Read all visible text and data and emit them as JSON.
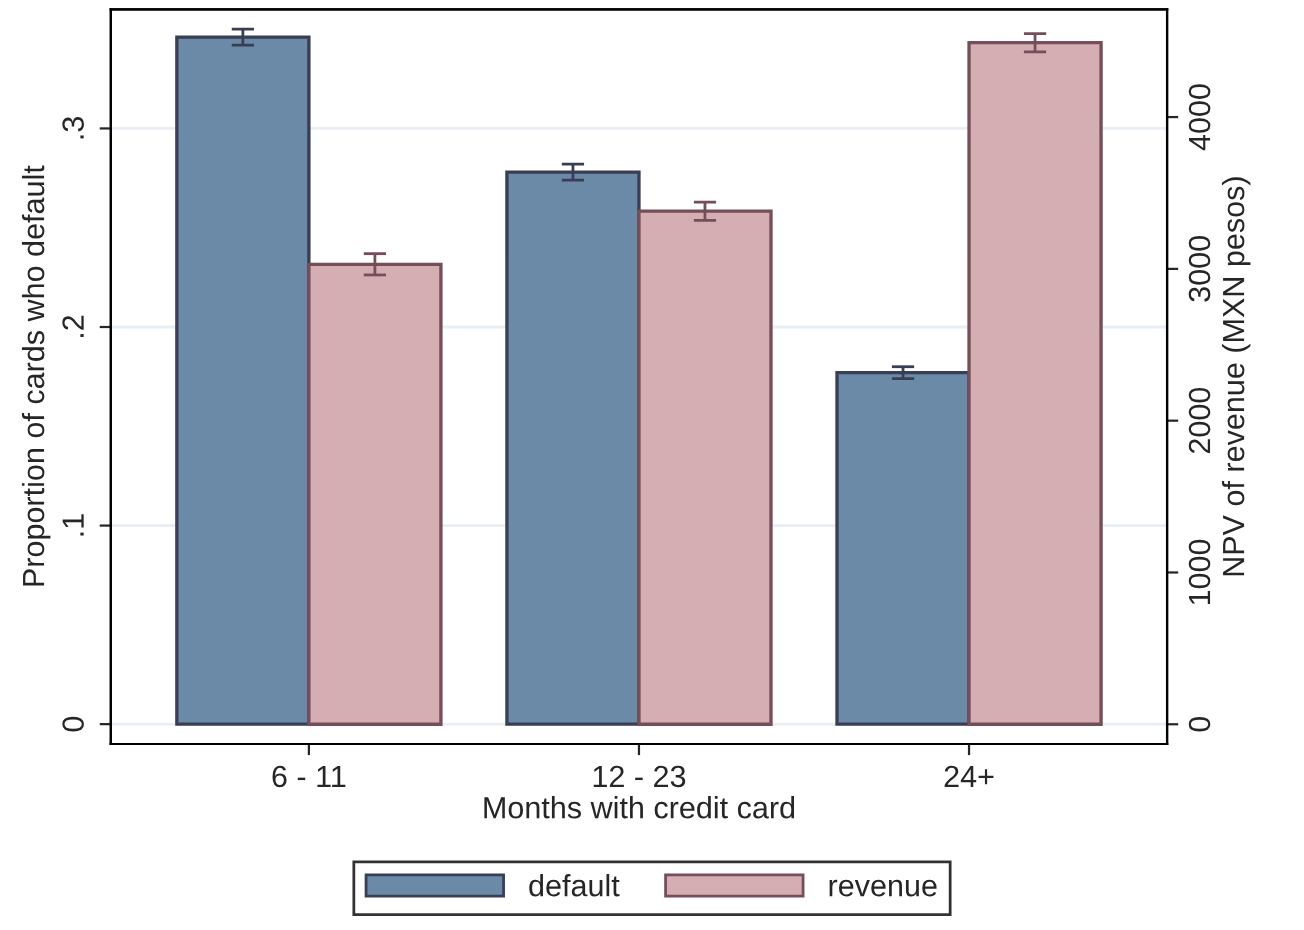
{
  "chart_data": {
    "type": "bar",
    "xlabel": "Months with credit card",
    "ylabel": "Proportion of cards who default",
    "y2label": "NPV of revenue (MXN pesos)",
    "categories": [
      "6 - 11",
      "12 - 23",
      "24+"
    ],
    "series": [
      {
        "name": "default",
        "color": "#6a8aa7",
        "values": [
          0.346,
          0.278,
          0.177
        ],
        "errors": [
          0.004,
          0.004,
          0.003
        ]
      },
      {
        "name": "revenue",
        "color": "#d4aeb3",
        "axis": "y2",
        "values": [
          3030,
          3380,
          4490
        ],
        "errors": [
          70,
          60,
          60
        ]
      }
    ],
    "ylim": [
      -0.01,
      0.36
    ],
    "yticks": [
      {
        "value": 0,
        "label": "0"
      },
      {
        "value": 0.1,
        "label": ".1"
      },
      {
        "value": 0.2,
        "label": ".2"
      },
      {
        "value": 0.3,
        "label": ".3"
      }
    ],
    "y2lim": [
      -130,
      4710
    ],
    "y2ticks": [
      0,
      1000,
      2000,
      3000,
      4000
    ],
    "grid": "y",
    "legend": "bottom"
  }
}
